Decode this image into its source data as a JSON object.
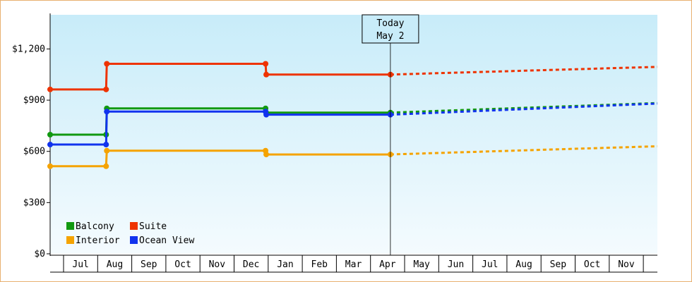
{
  "chart_data": {
    "type": "line",
    "title": "",
    "xlabel": "",
    "ylabel": "",
    "ylim": [
      0,
      1400
    ],
    "y_ticks": [
      0,
      300,
      600,
      900,
      1200
    ],
    "y_tick_labels": [
      "$0",
      "$300",
      "$600",
      "$900",
      "$1,200"
    ],
    "months": [
      "Jul",
      "Aug",
      "Sep",
      "Oct",
      "Nov",
      "Dec",
      "Jan",
      "Feb",
      "Mar",
      "Apr",
      "May",
      "Jun",
      "Jul",
      "Aug",
      "Sep",
      "Oct",
      "Nov"
    ],
    "x_domain": [
      0,
      17.9
    ],
    "grid": false,
    "legend_position": "bottom-left",
    "today": {
      "line1": "Today",
      "line2": "May 2",
      "x": 10.03
    },
    "series": [
      {
        "name": "Balcony",
        "color": "#119911",
        "history": [
          [
            0,
            698
          ],
          [
            1.65,
            698
          ],
          [
            1.67,
            852
          ],
          [
            6.35,
            852
          ],
          [
            6.37,
            827
          ],
          [
            10.03,
            827
          ]
        ],
        "markers": [
          [
            0,
            698
          ],
          [
            1.65,
            698
          ],
          [
            1.67,
            852
          ],
          [
            6.35,
            852
          ],
          [
            6.37,
            827
          ],
          [
            10.03,
            827
          ]
        ],
        "forecast": [
          [
            10.03,
            827
          ],
          [
            17.9,
            883
          ]
        ]
      },
      {
        "name": "Suite",
        "color": "#ee3300",
        "history": [
          [
            0,
            963
          ],
          [
            1.65,
            963
          ],
          [
            1.67,
            1113
          ],
          [
            6.35,
            1113
          ],
          [
            6.37,
            1050
          ],
          [
            10.03,
            1050
          ]
        ],
        "markers": [
          [
            0,
            963
          ],
          [
            1.65,
            963
          ],
          [
            1.67,
            1113
          ],
          [
            6.35,
            1113
          ],
          [
            6.37,
            1050
          ],
          [
            10.03,
            1050
          ]
        ],
        "forecast": [
          [
            10.03,
            1050
          ],
          [
            17.9,
            1095
          ]
        ]
      },
      {
        "name": "Interior",
        "color": "#f5a300",
        "history": [
          [
            0,
            513
          ],
          [
            1.65,
            513
          ],
          [
            1.67,
            604
          ],
          [
            6.35,
            604
          ],
          [
            6.37,
            582
          ],
          [
            10.03,
            582
          ]
        ],
        "markers": [
          [
            0,
            513
          ],
          [
            1.65,
            513
          ],
          [
            1.67,
            604
          ],
          [
            6.35,
            604
          ],
          [
            6.37,
            582
          ],
          [
            10.03,
            582
          ]
        ],
        "forecast": [
          [
            10.03,
            582
          ],
          [
            17.9,
            630
          ]
        ]
      },
      {
        "name": "Ocean View",
        "color": "#1133ee",
        "history": [
          [
            0,
            640
          ],
          [
            1.65,
            640
          ],
          [
            1.67,
            833
          ],
          [
            6.35,
            833
          ],
          [
            6.37,
            815
          ],
          [
            10.03,
            815
          ]
        ],
        "markers": [
          [
            0,
            640
          ],
          [
            1.65,
            640
          ],
          [
            1.67,
            833
          ],
          [
            6.35,
            833
          ],
          [
            6.37,
            815
          ],
          [
            10.03,
            815
          ]
        ],
        "forecast": [
          [
            10.03,
            815
          ],
          [
            17.9,
            880
          ]
        ]
      }
    ]
  }
}
